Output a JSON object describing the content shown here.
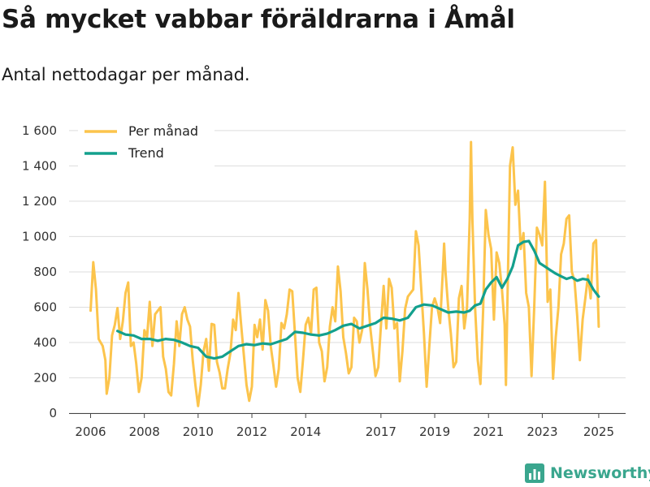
{
  "title": "Så mycket vabbar föräldrarna i Åmål",
  "subtitle": "Antal nettodagar per månad.",
  "brand": {
    "name": "Newsworthy",
    "icon": "newsworthy-logo-icon"
  },
  "colors": {
    "per_month": "#fcc44c",
    "trend": "#13a08d",
    "grid": "#dddddd",
    "axis": "#444444"
  },
  "chart_data": {
    "type": "line",
    "title": "Så mycket vabbar föräldrarna i Åmål",
    "subtitle": "Antal nettodagar per månad.",
    "xlabel": "",
    "ylabel": "",
    "xlim": [
      2005.2,
      2025.9
    ],
    "ylim": [
      0,
      1650
    ],
    "grid": true,
    "legend": "top-left",
    "y_ticks": [
      0,
      200,
      400,
      600,
      800,
      1000,
      1200,
      1400,
      1600
    ],
    "y_tick_labels": [
      "0",
      "200",
      "400",
      "600",
      "800",
      "1 000",
      "1 200",
      "1 400",
      "1 600"
    ],
    "x_ticks": [
      2006,
      2008,
      2010,
      2012,
      2014,
      2017,
      2019,
      2021,
      2023,
      2025
    ],
    "x_tick_positions": [
      2006.0,
      2008.0,
      2010.0,
      2012.0,
      2014.0,
      2016.8,
      2018.8,
      2020.8,
      2022.8,
      2024.9
    ],
    "x_tick_labels": [
      "2006",
      "2008",
      "2010",
      "2012",
      "2014",
      "2017",
      "2019",
      "2021",
      "2023",
      "2025"
    ],
    "series": [
      {
        "name": "Per månad",
        "color": "#fcc44c",
        "points": [
          [
            2006.0,
            580
          ],
          [
            2006.1,
            855
          ],
          [
            2006.2,
            700
          ],
          [
            2006.3,
            420
          ],
          [
            2006.45,
            380
          ],
          [
            2006.55,
            300
          ],
          [
            2006.6,
            110
          ],
          [
            2006.7,
            200
          ],
          [
            2006.8,
            440
          ],
          [
            2006.9,
            500
          ],
          [
            2007.0,
            595
          ],
          [
            2007.1,
            420
          ],
          [
            2007.2,
            520
          ],
          [
            2007.3,
            680
          ],
          [
            2007.4,
            740
          ],
          [
            2007.5,
            380
          ],
          [
            2007.6,
            400
          ],
          [
            2007.7,
            280
          ],
          [
            2007.8,
            120
          ],
          [
            2007.9,
            200
          ],
          [
            2008.0,
            470
          ],
          [
            2008.1,
            430
          ],
          [
            2008.2,
            630
          ],
          [
            2008.3,
            380
          ],
          [
            2008.4,
            560
          ],
          [
            2008.5,
            580
          ],
          [
            2008.6,
            600
          ],
          [
            2008.7,
            320
          ],
          [
            2008.8,
            250
          ],
          [
            2008.9,
            120
          ],
          [
            2009.0,
            100
          ],
          [
            2009.1,
            280
          ],
          [
            2009.2,
            520
          ],
          [
            2009.3,
            380
          ],
          [
            2009.4,
            560
          ],
          [
            2009.5,
            600
          ],
          [
            2009.6,
            530
          ],
          [
            2009.7,
            490
          ],
          [
            2009.8,
            300
          ],
          [
            2009.9,
            160
          ],
          [
            2010.0,
            40
          ],
          [
            2010.1,
            160
          ],
          [
            2010.2,
            350
          ],
          [
            2010.3,
            420
          ],
          [
            2010.4,
            240
          ],
          [
            2010.5,
            505
          ],
          [
            2010.6,
            500
          ],
          [
            2010.7,
            290
          ],
          [
            2010.8,
            230
          ],
          [
            2010.9,
            140
          ],
          [
            2011.0,
            140
          ],
          [
            2011.1,
            250
          ],
          [
            2011.2,
            340
          ],
          [
            2011.3,
            530
          ],
          [
            2011.4,
            470
          ],
          [
            2011.5,
            680
          ],
          [
            2011.6,
            500
          ],
          [
            2011.7,
            330
          ],
          [
            2011.8,
            160
          ],
          [
            2011.9,
            70
          ],
          [
            2012.0,
            150
          ],
          [
            2012.1,
            500
          ],
          [
            2012.2,
            430
          ],
          [
            2012.3,
            530
          ],
          [
            2012.4,
            360
          ],
          [
            2012.5,
            640
          ],
          [
            2012.6,
            580
          ],
          [
            2012.7,
            380
          ],
          [
            2012.8,
            270
          ],
          [
            2012.9,
            150
          ],
          [
            2013.0,
            250
          ],
          [
            2013.1,
            510
          ],
          [
            2013.2,
            480
          ],
          [
            2013.3,
            560
          ],
          [
            2013.4,
            700
          ],
          [
            2013.5,
            690
          ],
          [
            2013.6,
            450
          ],
          [
            2013.7,
            200
          ],
          [
            2013.8,
            120
          ],
          [
            2013.9,
            300
          ],
          [
            2014.0,
            500
          ],
          [
            2014.1,
            540
          ],
          [
            2014.2,
            450
          ],
          [
            2014.3,
            700
          ],
          [
            2014.4,
            710
          ],
          [
            2014.5,
            400
          ],
          [
            2014.6,
            350
          ],
          [
            2014.7,
            180
          ],
          [
            2014.8,
            260
          ],
          [
            2014.9,
            490
          ],
          [
            2015.0,
            600
          ],
          [
            2015.1,
            520
          ],
          [
            2015.2,
            830
          ],
          [
            2015.3,
            690
          ],
          [
            2015.4,
            430
          ],
          [
            2015.5,
            340
          ],
          [
            2015.6,
            225
          ],
          [
            2015.7,
            260
          ],
          [
            2015.8,
            540
          ],
          [
            2015.9,
            520
          ],
          [
            2016.0,
            400
          ],
          [
            2016.1,
            470
          ],
          [
            2016.2,
            850
          ],
          [
            2016.3,
            700
          ],
          [
            2016.4,
            490
          ],
          [
            2016.5,
            350
          ],
          [
            2016.6,
            210
          ],
          [
            2016.7,
            260
          ],
          [
            2016.8,
            500
          ],
          [
            2016.9,
            720
          ],
          [
            2017.0,
            480
          ],
          [
            2017.1,
            760
          ],
          [
            2017.2,
            710
          ],
          [
            2017.3,
            480
          ],
          [
            2017.4,
            510
          ],
          [
            2017.5,
            180
          ],
          [
            2017.6,
            350
          ],
          [
            2017.7,
            590
          ],
          [
            2017.8,
            660
          ],
          [
            2017.9,
            680
          ],
          [
            2018.0,
            700
          ],
          [
            2018.1,
            1030
          ],
          [
            2018.2,
            950
          ],
          [
            2018.3,
            700
          ],
          [
            2018.4,
            450
          ],
          [
            2018.5,
            150
          ],
          [
            2018.6,
            380
          ],
          [
            2018.7,
            600
          ],
          [
            2018.8,
            650
          ],
          [
            2018.9,
            600
          ],
          [
            2019.0,
            510
          ],
          [
            2019.1,
            800
          ],
          [
            2019.15,
            960
          ],
          [
            2019.2,
            800
          ],
          [
            2019.3,
            600
          ],
          [
            2019.4,
            450
          ],
          [
            2019.5,
            260
          ],
          [
            2019.6,
            290
          ],
          [
            2019.7,
            650
          ],
          [
            2019.8,
            720
          ],
          [
            2019.9,
            480
          ],
          [
            2020.0,
            600
          ],
          [
            2020.1,
            1100
          ],
          [
            2020.15,
            1535
          ],
          [
            2020.2,
            1100
          ],
          [
            2020.3,
            600
          ],
          [
            2020.4,
            300
          ],
          [
            2020.5,
            165
          ],
          [
            2020.6,
            580
          ],
          [
            2020.7,
            1150
          ],
          [
            2020.8,
            1010
          ],
          [
            2020.9,
            930
          ],
          [
            2021.0,
            530
          ],
          [
            2021.1,
            910
          ],
          [
            2021.2,
            850
          ],
          [
            2021.3,
            700
          ],
          [
            2021.4,
            500
          ],
          [
            2021.45,
            160
          ],
          [
            2021.5,
            600
          ],
          [
            2021.6,
            1400
          ],
          [
            2021.7,
            1505
          ],
          [
            2021.8,
            1180
          ],
          [
            2021.9,
            1260
          ],
          [
            2022.0,
            930
          ],
          [
            2022.1,
            1020
          ],
          [
            2022.2,
            680
          ],
          [
            2022.3,
            600
          ],
          [
            2022.4,
            210
          ],
          [
            2022.5,
            600
          ],
          [
            2022.6,
            1050
          ],
          [
            2022.7,
            1010
          ],
          [
            2022.8,
            950
          ],
          [
            2022.9,
            1310
          ],
          [
            2023.0,
            630
          ],
          [
            2023.1,
            700
          ],
          [
            2023.2,
            195
          ],
          [
            2023.3,
            430
          ],
          [
            2023.4,
            600
          ],
          [
            2023.5,
            900
          ],
          [
            2023.6,
            960
          ],
          [
            2023.7,
            1100
          ],
          [
            2023.8,
            1120
          ],
          [
            2023.9,
            800
          ],
          [
            2024.0,
            750
          ],
          [
            2024.1,
            550
          ],
          [
            2024.2,
            300
          ],
          [
            2024.3,
            530
          ],
          [
            2024.4,
            650
          ],
          [
            2024.5,
            780
          ],
          [
            2024.6,
            650
          ],
          [
            2024.7,
            960
          ],
          [
            2024.8,
            980
          ],
          [
            2024.9,
            490
          ]
        ]
      },
      {
        "name": "Trend",
        "color": "#13a08d",
        "points": [
          [
            2007.0,
            465
          ],
          [
            2007.3,
            445
          ],
          [
            2007.6,
            440
          ],
          [
            2007.9,
            420
          ],
          [
            2008.2,
            420
          ],
          [
            2008.5,
            410
          ],
          [
            2008.8,
            420
          ],
          [
            2009.1,
            415
          ],
          [
            2009.4,
            400
          ],
          [
            2009.7,
            380
          ],
          [
            2010.0,
            370
          ],
          [
            2010.3,
            320
          ],
          [
            2010.6,
            310
          ],
          [
            2010.9,
            320
          ],
          [
            2011.2,
            350
          ],
          [
            2011.5,
            380
          ],
          [
            2011.8,
            390
          ],
          [
            2012.1,
            385
          ],
          [
            2012.4,
            395
          ],
          [
            2012.7,
            390
          ],
          [
            2013.0,
            405
          ],
          [
            2013.3,
            420
          ],
          [
            2013.6,
            460
          ],
          [
            2013.9,
            455
          ],
          [
            2014.2,
            445
          ],
          [
            2014.5,
            440
          ],
          [
            2014.8,
            450
          ],
          [
            2015.1,
            470
          ],
          [
            2015.4,
            495
          ],
          [
            2015.7,
            505
          ],
          [
            2016.0,
            480
          ],
          [
            2016.3,
            495
          ],
          [
            2016.6,
            510
          ],
          [
            2016.9,
            540
          ],
          [
            2017.2,
            535
          ],
          [
            2017.5,
            525
          ],
          [
            2017.8,
            540
          ],
          [
            2018.1,
            600
          ],
          [
            2018.4,
            615
          ],
          [
            2018.7,
            610
          ],
          [
            2019.0,
            590
          ],
          [
            2019.3,
            570
          ],
          [
            2019.6,
            575
          ],
          [
            2019.9,
            570
          ],
          [
            2020.1,
            580
          ],
          [
            2020.3,
            610
          ],
          [
            2020.5,
            620
          ],
          [
            2020.7,
            700
          ],
          [
            2020.9,
            740
          ],
          [
            2021.1,
            770
          ],
          [
            2021.3,
            710
          ],
          [
            2021.5,
            760
          ],
          [
            2021.7,
            830
          ],
          [
            2021.9,
            950
          ],
          [
            2022.1,
            970
          ],
          [
            2022.3,
            975
          ],
          [
            2022.5,
            920
          ],
          [
            2022.7,
            850
          ],
          [
            2022.9,
            830
          ],
          [
            2023.1,
            810
          ],
          [
            2023.3,
            790
          ],
          [
            2023.5,
            775
          ],
          [
            2023.7,
            760
          ],
          [
            2023.9,
            770
          ],
          [
            2024.1,
            750
          ],
          [
            2024.3,
            760
          ],
          [
            2024.5,
            755
          ],
          [
            2024.7,
            700
          ],
          [
            2024.9,
            660
          ]
        ]
      }
    ]
  }
}
